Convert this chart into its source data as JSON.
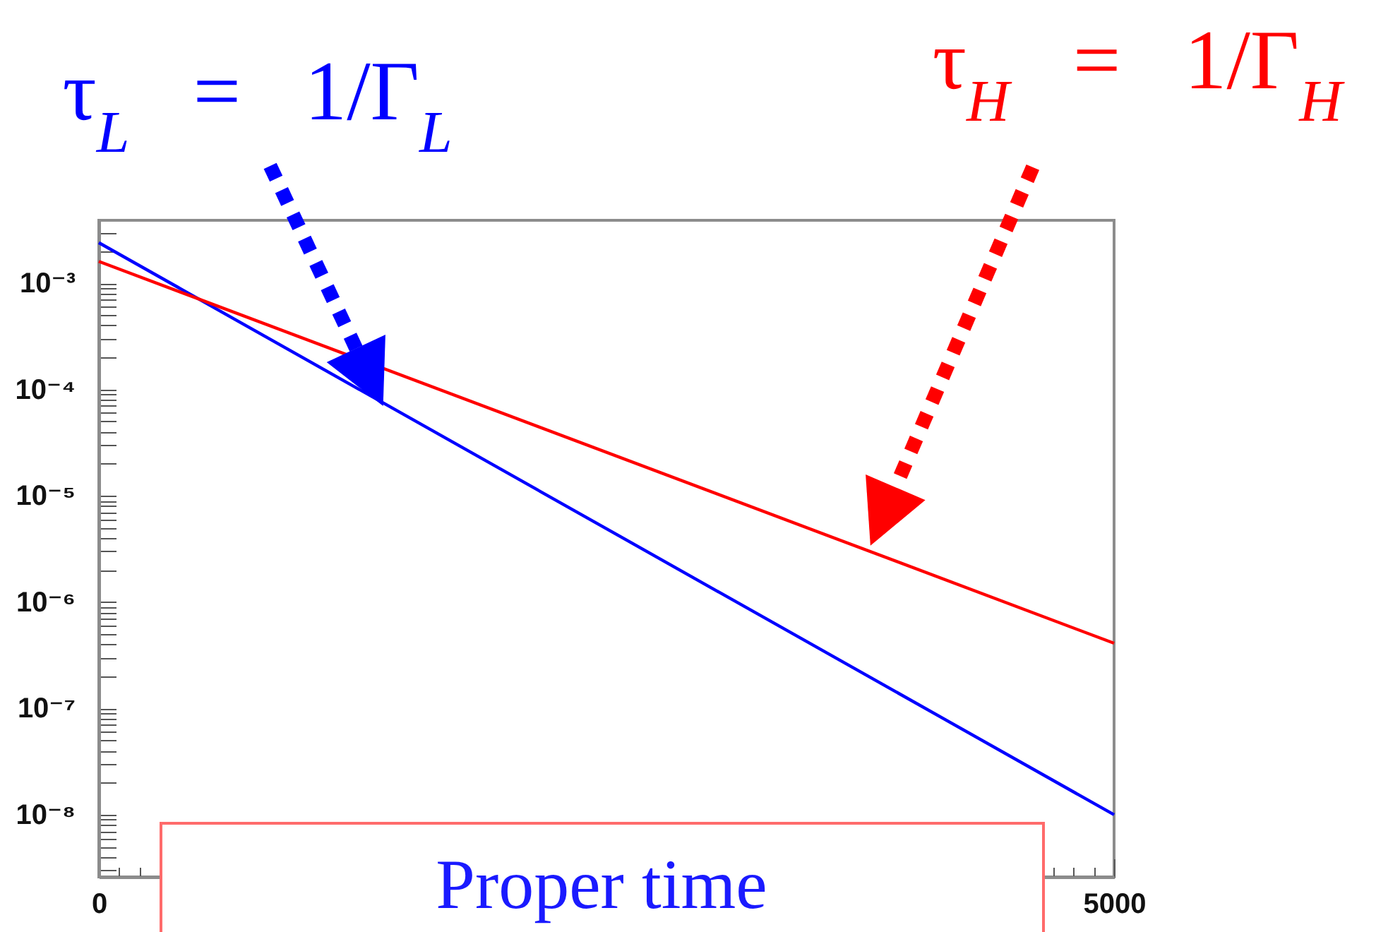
{
  "chart_data": {
    "type": "line",
    "xlabel": "Proper time",
    "x": [
      0,
      5000
    ],
    "series": [
      {
        "color": "#0000ff",
        "values": [
          0.0024,
          1e-08
        ]
      },
      {
        "color": "#ff0000",
        "values": [
          0.0016,
          4.1e-07
        ]
      }
    ],
    "xlim": [
      0,
      5000
    ],
    "xticks": [
      0,
      {
        "value": 100,
        "label": null
      },
      {
        "value": 200,
        "label": null
      },
      {
        "value": 4700,
        "label": null
      },
      {
        "value": 4800,
        "label": null
      },
      {
        "value": 4900,
        "label": null
      },
      5000
    ],
    "ylim": [
      2.6e-09,
      0.0039
    ],
    "yticks": [
      {
        "value": 3e-09,
        "label": null
      },
      {
        "value": 4e-09,
        "label": null
      },
      {
        "value": 5e-09,
        "label": null
      },
      {
        "value": 6e-09,
        "label": null
      },
      {
        "value": 7e-09,
        "label": null
      },
      {
        "value": 8e-09,
        "label": null
      },
      {
        "value": 9e-09,
        "label": null
      },
      {
        "value": 1e-08,
        "label": "10⁻⁸"
      },
      {
        "value": 2e-08,
        "label": null
      },
      {
        "value": 3e-08,
        "label": null
      },
      {
        "value": 4e-08,
        "label": null
      },
      {
        "value": 5e-08,
        "label": null
      },
      {
        "value": 6e-08,
        "label": null
      },
      {
        "value": 7e-08,
        "label": null
      },
      {
        "value": 8e-08,
        "label": null
      },
      {
        "value": 9e-08,
        "label": null
      },
      {
        "value": 1e-07,
        "label": "10⁻⁷"
      },
      {
        "value": 2e-07,
        "label": null
      },
      {
        "value": 3e-07,
        "label": null
      },
      {
        "value": 4e-07,
        "label": null
      },
      {
        "value": 5e-07,
        "label": null
      },
      {
        "value": 6e-07,
        "label": null
      },
      {
        "value": 7e-07,
        "label": null
      },
      {
        "value": 8e-07,
        "label": null
      },
      {
        "value": 9e-07,
        "label": null
      },
      {
        "value": 1e-06,
        "label": "10⁻⁶"
      },
      {
        "value": 2e-06,
        "label": null
      },
      {
        "value": 3e-06,
        "label": null
      },
      {
        "value": 4e-06,
        "label": null
      },
      {
        "value": 5e-06,
        "label": null
      },
      {
        "value": 6e-06,
        "label": null
      },
      {
        "value": 7e-06,
        "label": null
      },
      {
        "value": 8e-06,
        "label": null
      },
      {
        "value": 9e-06,
        "label": null
      },
      {
        "value": 1e-05,
        "label": "10⁻⁵"
      },
      {
        "value": 2e-05,
        "label": null
      },
      {
        "value": 3e-05,
        "label": null
      },
      {
        "value": 4e-05,
        "label": null
      },
      {
        "value": 5e-05,
        "label": null
      },
      {
        "value": 6e-05,
        "label": null
      },
      {
        "value": 7e-05,
        "label": null
      },
      {
        "value": 8e-05,
        "label": null
      },
      {
        "value": 9e-05,
        "label": null
      },
      {
        "value": 0.0001,
        "label": "10⁻⁴"
      },
      {
        "value": 0.0002,
        "label": null
      },
      {
        "value": 0.0003,
        "label": null
      },
      {
        "value": 0.0004,
        "label": null
      },
      {
        "value": 0.0005,
        "label": null
      },
      {
        "value": 0.0006,
        "label": null
      },
      {
        "value": 0.0007,
        "label": null
      },
      {
        "value": 0.0008,
        "label": null
      },
      {
        "value": 0.0009,
        "label": null
      },
      {
        "value": 0.001,
        "label": "10⁻³"
      },
      {
        "value": 0.002,
        "label": null
      },
      {
        "value": 0.003,
        "label": null
      }
    ],
    "log": true,
    "annotations": [
      {
        "text": "τ$_{L}$ = 1/Γ$_{L}$",
        "x": 1400,
        "y": 7e-05
      },
      "τ$_{H}$ = 1/Γ$_{H}$"
    ]
  }
}
